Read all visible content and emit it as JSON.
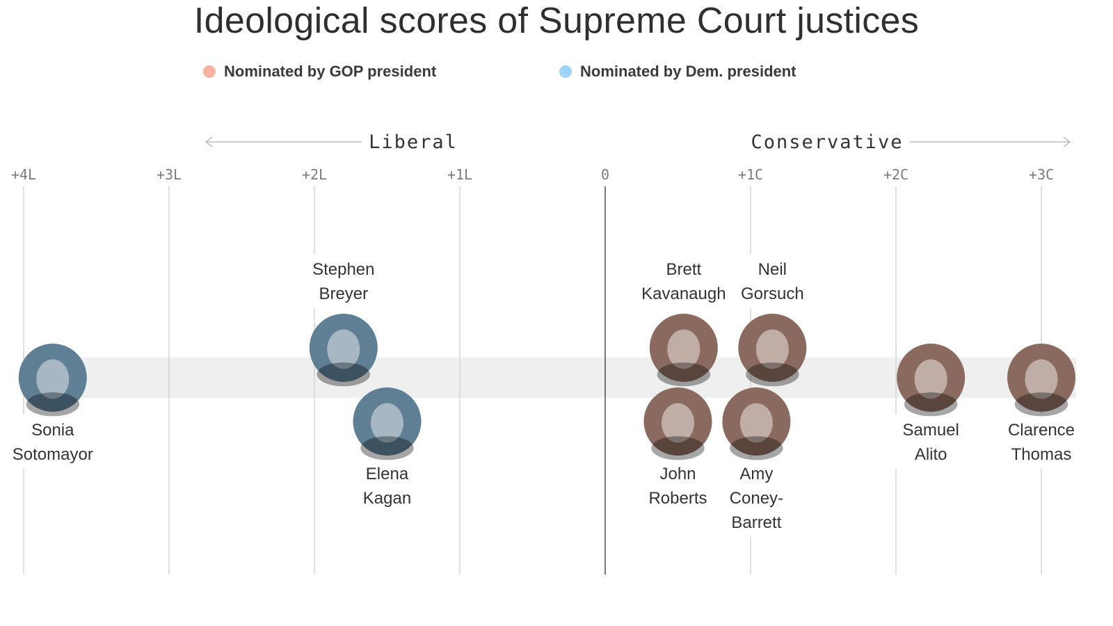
{
  "header": {
    "title": "Ideological scores of Supreme Court justices"
  },
  "legend": [
    {
      "label": "Nominated by GOP president",
      "color": "#f7b3a0"
    },
    {
      "label": "Nominated by Dem. president",
      "color": "#9dd5f6"
    }
  ],
  "colors": {
    "gop_portrait": "#8a6a5e",
    "dem_portrait": "#5f7f94",
    "band": "#efefef",
    "gridline": "#cccccc",
    "zero_line": "#555555"
  },
  "chart_data": {
    "type": "scatter",
    "title": "Ideological scores of Supreme Court justices",
    "direction_labels": {
      "left": "Liberal",
      "right": "Conservative"
    },
    "xlim": [
      -4,
      3
    ],
    "ticks": [
      {
        "value": -4,
        "label": "+4L"
      },
      {
        "value": -3,
        "label": "+3L"
      },
      {
        "value": -2,
        "label": "+2L"
      },
      {
        "value": -1,
        "label": "+1L"
      },
      {
        "value": 0,
        "label": "0"
      },
      {
        "value": 1,
        "label": "+1C"
      },
      {
        "value": 2,
        "label": "+2C"
      },
      {
        "value": 3,
        "label": "+3C"
      }
    ],
    "justices": [
      {
        "name_lines": [
          "Sonia",
          "Sotomayor"
        ],
        "score": -3.8,
        "party": "Dem",
        "row": "mid",
        "label_pos": "below"
      },
      {
        "name_lines": [
          "Stephen",
          "Breyer"
        ],
        "score": -1.8,
        "party": "Dem",
        "row": "up",
        "label_pos": "above"
      },
      {
        "name_lines": [
          "Elena",
          "Kagan"
        ],
        "score": -1.5,
        "party": "Dem",
        "row": "down",
        "label_pos": "below"
      },
      {
        "name_lines": [
          "Brett",
          "Kavanaugh"
        ],
        "score": 0.54,
        "party": "GOP",
        "row": "up",
        "label_pos": "above"
      },
      {
        "name_lines": [
          "John",
          "Roberts"
        ],
        "score": 0.5,
        "party": "GOP",
        "row": "down",
        "label_pos": "below"
      },
      {
        "name_lines": [
          "Neil",
          "Gorsuch"
        ],
        "score": 1.15,
        "party": "GOP",
        "row": "up",
        "label_pos": "above"
      },
      {
        "name_lines": [
          "Amy",
          "Coney-",
          "Barrett"
        ],
        "score": 1.04,
        "party": "GOP",
        "row": "down",
        "label_pos": "below"
      },
      {
        "name_lines": [
          "Samuel",
          "Alito"
        ],
        "score": 2.24,
        "party": "GOP",
        "row": "mid",
        "label_pos": "below"
      },
      {
        "name_lines": [
          "Clarence",
          "Thomas"
        ],
        "score": 3.0,
        "party": "GOP",
        "row": "mid",
        "label_pos": "below"
      }
    ]
  }
}
